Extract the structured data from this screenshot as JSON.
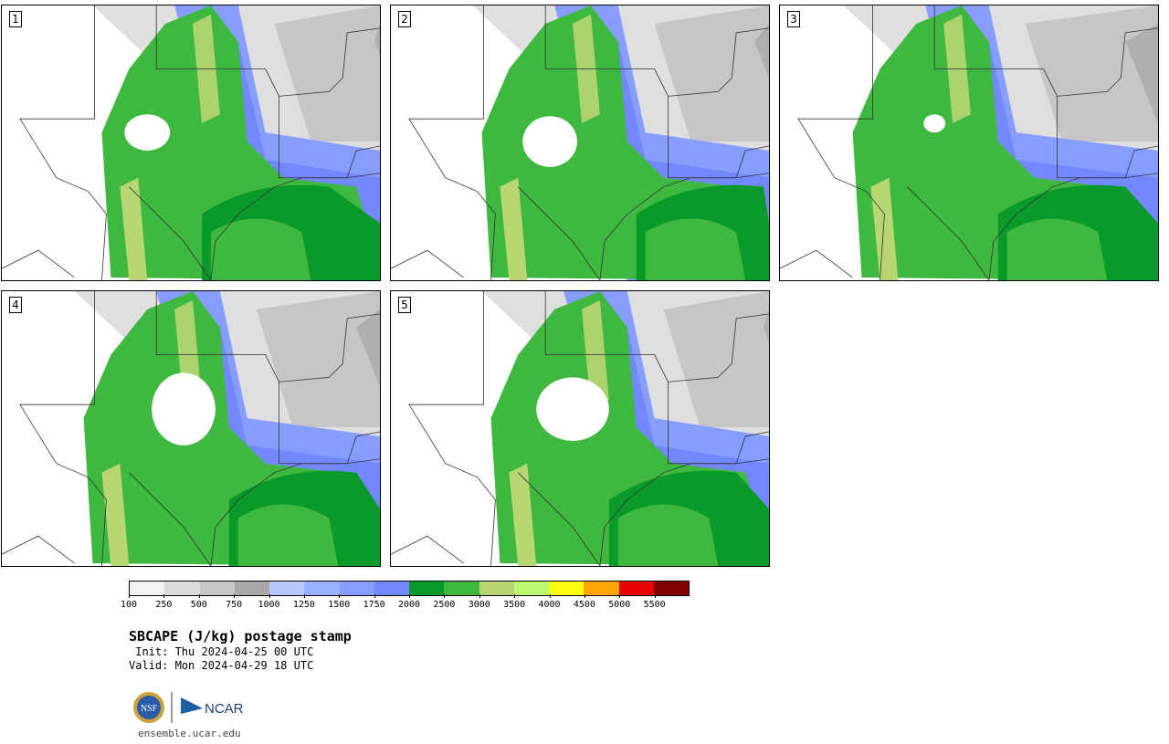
{
  "panels": [
    {
      "label": "1"
    },
    {
      "label": "2"
    },
    {
      "label": "3"
    },
    {
      "label": "4"
    },
    {
      "label": "5"
    }
  ],
  "colorbar": {
    "colors": [
      "#f2f2f2",
      "#dcdcdc",
      "#c6c6c6",
      "#a9a9a9",
      "#b8c8ff",
      "#9ab2ff",
      "#879dff",
      "#7388ff",
      "#0a9a2a",
      "#3fb840",
      "#b8d674",
      "#bcf870",
      "#ffff12",
      "#ffa505",
      "#e70000",
      "#800000"
    ],
    "ticks": [
      "100",
      "250",
      "500",
      "750",
      "1000",
      "1250",
      "1500",
      "1750",
      "2000",
      "2500",
      "3000",
      "3500",
      "4000",
      "4500",
      "5000",
      "5500"
    ]
  },
  "title": "SBCAPE (J/kg) postage stamp",
  "init": " Init: Thu 2024-04-25 00 UTC",
  "valid": "Valid: Mon 2024-04-29 18 UTC",
  "logos": {
    "nsf": "NSF",
    "ncar": "NCAR"
  },
  "site": "ensemble.ucar.edu"
}
